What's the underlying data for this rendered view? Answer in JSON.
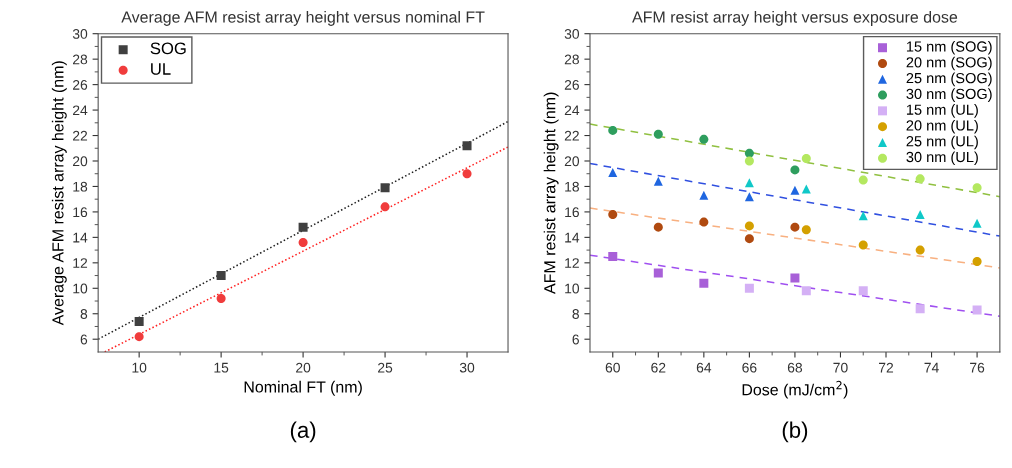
{
  "chart_data": [
    {
      "type": "scatter",
      "title": "Average AFM resist array height versus nominal FT",
      "xlabel": "Nominal FT (nm)",
      "ylabel": "Average AFM resist array height (nm)",
      "xlim": [
        7.5,
        32.5
      ],
      "ylim": [
        5,
        30
      ],
      "xticks": [
        10,
        {
          "value": 12.5,
          "label": null
        },
        15,
        {
          "value": 17.5,
          "label": null
        },
        20,
        {
          "value": 22.5,
          "label": null
        },
        25,
        {
          "value": 27.5,
          "label": null
        },
        30
      ],
      "yticks": [
        6,
        {
          "value": 7,
          "label": null
        },
        8,
        {
          "value": 9,
          "label": null
        },
        10,
        {
          "value": 11,
          "label": null
        },
        12,
        {
          "value": 13,
          "label": null
        },
        14,
        {
          "value": 15,
          "label": null
        },
        16,
        {
          "value": 17,
          "label": null
        },
        18,
        {
          "value": 19,
          "label": null
        },
        20,
        {
          "value": 21,
          "label": null
        },
        22,
        {
          "value": 23,
          "label": null
        },
        24,
        {
          "value": 25,
          "label": null
        },
        26,
        {
          "value": 27,
          "label": null
        },
        28,
        {
          "value": 29,
          "label": null
        },
        30
      ],
      "grid": false,
      "legend": "top left",
      "annotations": [
        "(a)"
      ],
      "series": [
        {
          "name": "SOG",
          "marker": "square",
          "color": "#404040",
          "x": [
            10,
            15,
            20,
            25,
            30
          ],
          "values": [
            7.4,
            11.0,
            14.8,
            17.9,
            21.2
          ]
        },
        {
          "name": "UL",
          "marker": "circle",
          "color": "#f03c3c",
          "x": [
            10,
            15,
            20,
            25,
            30
          ],
          "values": [
            6.2,
            9.2,
            13.6,
            16.4,
            19.0
          ]
        },
        {
          "type": "line",
          "marker": "none",
          "line_style": "dotted",
          "color": "#202020",
          "x": [
            7.5,
            32.5
          ],
          "values": [
            6.0,
            23.1
          ]
        },
        {
          "type": "line",
          "marker": "none",
          "line_style": "dotted",
          "color": "#ff2020",
          "x": [
            7.9,
            32.5
          ],
          "values": [
            5.0,
            21.1
          ]
        }
      ]
    },
    {
      "type": "scatter",
      "title": "AFM resist array height versus exposure dose",
      "xlabel": "Dose (mJ/cm$^{2}$)",
      "ylabel": "AFM resist array height (nm)",
      "xlim": [
        59,
        77
      ],
      "ylim": [
        5,
        30
      ],
      "xticks": [
        60,
        {
          "value": 61,
          "label": null
        },
        62,
        {
          "value": 63,
          "label": null
        },
        64,
        {
          "value": 65,
          "label": null
        },
        66,
        {
          "value": 67,
          "label": null
        },
        68,
        {
          "value": 69,
          "label": null
        },
        70,
        {
          "value": 71,
          "label": null
        },
        72,
        {
          "value": 73,
          "label": null
        },
        74,
        {
          "value": 75,
          "label": null
        },
        76
      ],
      "yticks": [
        6,
        {
          "value": 7,
          "label": null
        },
        8,
        {
          "value": 9,
          "label": null
        },
        10,
        {
          "value": 11,
          "label": null
        },
        12,
        {
          "value": 13,
          "label": null
        },
        14,
        {
          "value": 15,
          "label": null
        },
        16,
        {
          "value": 17,
          "label": null
        },
        18,
        {
          "value": 19,
          "label": null
        },
        20,
        {
          "value": 21,
          "label": null
        },
        22,
        {
          "value": 23,
          "label": null
        },
        24,
        {
          "value": 25,
          "label": null
        },
        26,
        {
          "value": 27,
          "label": null
        },
        28,
        {
          "value": 29,
          "label": null
        },
        30
      ],
      "grid": false,
      "legend": "top right",
      "annotations": [
        "(b)"
      ],
      "series": [
        {
          "name": "15 nm (SOG)",
          "marker": "square",
          "color": "#a860d8",
          "x": [
            60,
            62,
            64,
            68
          ],
          "values": [
            12.5,
            11.2,
            10.4,
            10.8
          ]
        },
        {
          "name": "20 nm (SOG)",
          "marker": "circle",
          "color": "#b04a10",
          "x": [
            60,
            62,
            64,
            66,
            68
          ],
          "values": [
            15.8,
            14.8,
            15.2,
            13.9,
            14.8
          ]
        },
        {
          "name": "25 nm (SOG)",
          "marker": "triangle",
          "color": "#1f66e0",
          "x": [
            60,
            62,
            64,
            66,
            68
          ],
          "values": [
            19.1,
            18.4,
            17.3,
            17.2,
            17.7
          ]
        },
        {
          "name": "30 nm (SOG)",
          "marker": "circle",
          "color": "#2e9e5e",
          "x": [
            60,
            62,
            64,
            66,
            68
          ],
          "values": [
            22.4,
            22.1,
            21.7,
            20.6,
            19.3
          ]
        },
        {
          "name": "15 nm (UL)",
          "marker": "square",
          "color": "#d4b0f5",
          "x": [
            66,
            68.5,
            71,
            73.5,
            76
          ],
          "values": [
            10.0,
            9.8,
            9.8,
            8.4,
            8.3
          ]
        },
        {
          "name": "20 nm (UL)",
          "marker": "circle",
          "color": "#d4a000",
          "x": [
            66,
            68.5,
            71,
            73.5,
            76
          ],
          "values": [
            14.9,
            14.6,
            13.4,
            13.0,
            12.1
          ]
        },
        {
          "name": "25 nm (UL)",
          "marker": "triangle",
          "color": "#10c8c8",
          "x": [
            66,
            68.5,
            71,
            73.5,
            76
          ],
          "values": [
            18.3,
            17.8,
            15.7,
            15.8,
            15.1
          ]
        },
        {
          "name": "30 nm (UL)",
          "marker": "circle",
          "color": "#b4e860",
          "x": [
            66,
            68.5,
            71,
            73.5,
            76
          ],
          "values": [
            20.0,
            20.2,
            18.5,
            18.6,
            17.9
          ]
        },
        {
          "type": "line",
          "marker": "none",
          "line_style": "dashed",
          "color": "#a050f0",
          "x": [
            59,
            77
          ],
          "values": [
            12.6,
            7.8
          ]
        },
        {
          "type": "line",
          "marker": "none",
          "line_style": "dashed",
          "color": "#f8b080",
          "x": [
            59,
            77
          ],
          "values": [
            16.3,
            11.6
          ]
        },
        {
          "type": "line",
          "marker": "none",
          "line_style": "dashed",
          "color": "#3050e0",
          "x": [
            59,
            77
          ],
          "values": [
            19.8,
            14.1
          ]
        },
        {
          "type": "line",
          "marker": "none",
          "line_style": "dashed",
          "color": "#90c040",
          "x": [
            59,
            77
          ],
          "values": [
            22.9,
            17.2
          ]
        }
      ]
    }
  ]
}
